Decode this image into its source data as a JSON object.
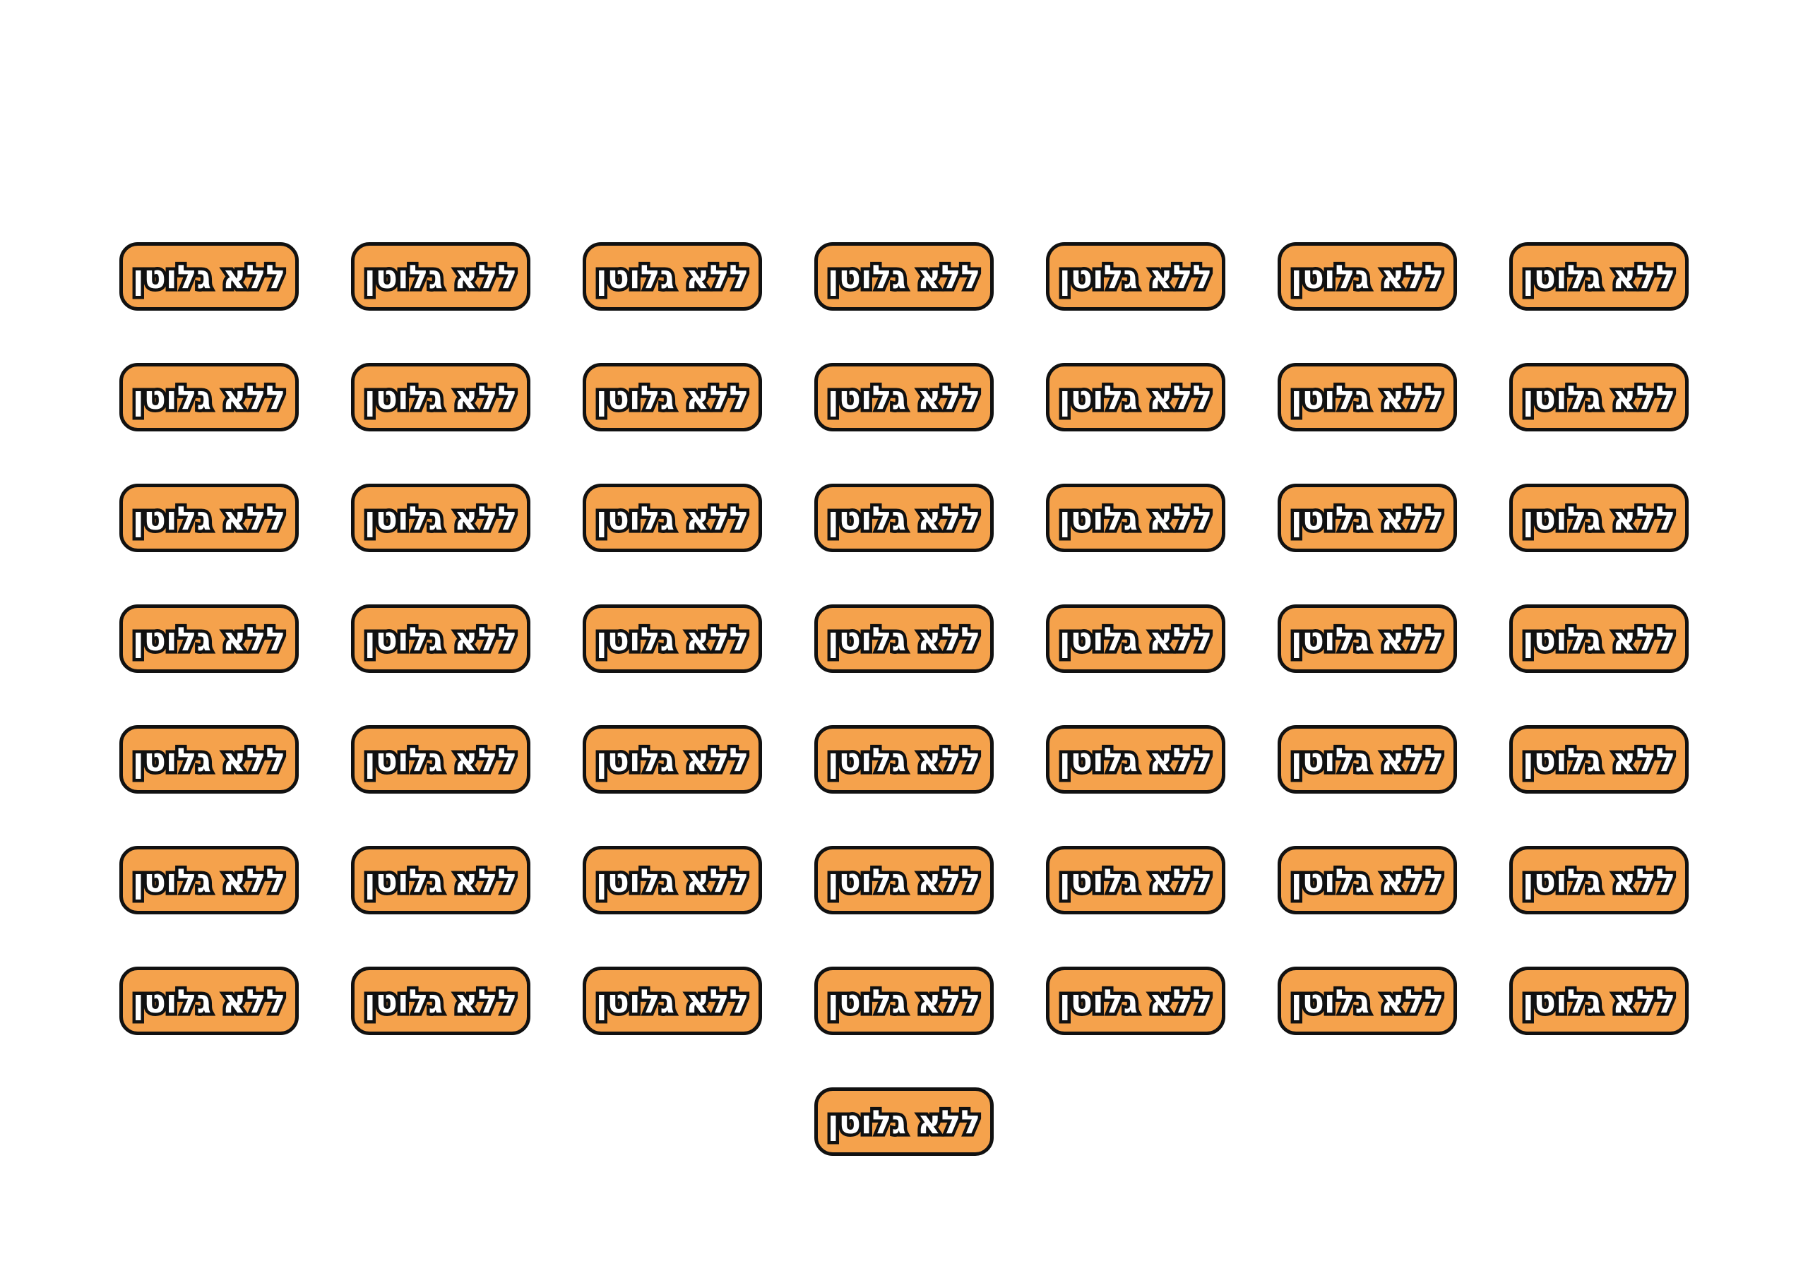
{
  "stickers": [
    "ללא גלוטן",
    "ללא גלוטן",
    "ללא גלוטן",
    "ללא גלוטן",
    "ללא גלוטן",
    "ללא גלוטן",
    "ללא גלוטן",
    "ללא גלוטן",
    "ללא גלוטן",
    "ללא גלוטן",
    "ללא גלוטן",
    "ללא גלוטן",
    "ללא גלוטן",
    "ללא גלוטן",
    "ללא גלוטן",
    "ללא גלוטן",
    "ללא גלוטן",
    "ללא גלוטן",
    "ללא גלוטן",
    "ללא גלוטן",
    "ללא גלוטן",
    "ללא גלוטן",
    "ללא גלוטן",
    "ללא גלוטן",
    "ללא גלוטן",
    "ללא גלוטן",
    "ללא גלוטן",
    "ללא גלוטן",
    "ללא גלוטן",
    "ללא גלוטן",
    "ללא גלוטן",
    "ללא גלוטן",
    "ללא גלוטן",
    "ללא גלוטן",
    "ללא גלוטן",
    "ללא גלוטן",
    "ללא גלוטן",
    "ללא גלוטן",
    "ללא גלוטן",
    "ללא גלוטן",
    "ללא גלוטן",
    "ללא גלוטן",
    "ללא גלוטן",
    "ללא גלוטן",
    "ללא גלוטן",
    "ללא גלוטן",
    "ללא גלוטן",
    "ללא גלוטן",
    "ללא גלוטן",
    "ללא גלוטן"
  ]
}
